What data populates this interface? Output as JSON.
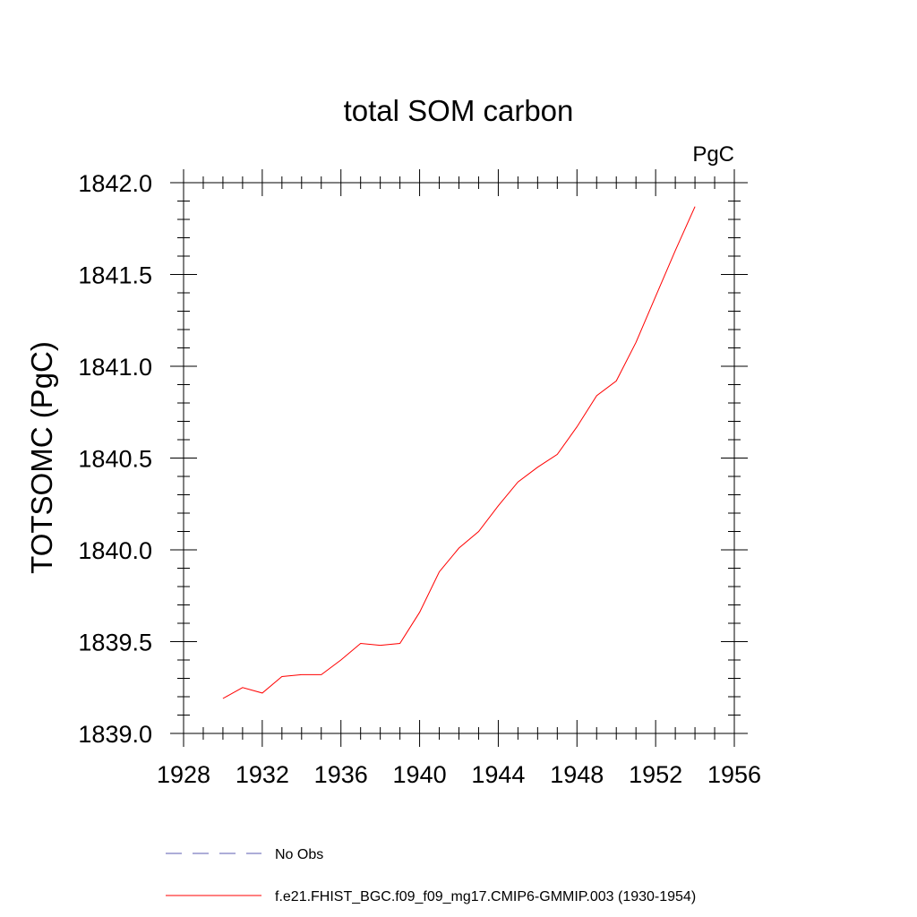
{
  "chart_data": {
    "type": "line",
    "title": "total SOM carbon",
    "units_label": "PgC",
    "ylabel": "TOTSOMC  (PgC)",
    "xlabel": "",
    "xlim": [
      1928,
      1956
    ],
    "ylim": [
      1839.0,
      1842.0
    ],
    "xticks": [
      1928,
      1932,
      1936,
      1940,
      1944,
      1948,
      1952,
      1956
    ],
    "yticks": [
      1839.0,
      1839.5,
      1840.0,
      1840.5,
      1841.0,
      1841.5,
      1842.0
    ],
    "xtick_labels": [
      "1928",
      "1932",
      "1936",
      "1940",
      "1944",
      "1948",
      "1952",
      "1956"
    ],
    "ytick_labels": [
      "1839.0",
      "1839.5",
      "1840.0",
      "1840.5",
      "1841.0",
      "1841.5",
      "1842.0"
    ],
    "grid": false,
    "legend_position": "bottom",
    "series": [
      {
        "name": "No Obs",
        "color": "#5b5bb0",
        "dash": "dashed",
        "x": [],
        "y": []
      },
      {
        "name": "f.e21.FHIST_BGC.f09_f09_mg17.CMIP6-GMMIP.003 (1930-1954)",
        "color": "#ff0000",
        "dash": "solid",
        "x": [
          1930,
          1931,
          1932,
          1933,
          1934,
          1935,
          1936,
          1937,
          1938,
          1939,
          1940,
          1941,
          1942,
          1943,
          1944,
          1945,
          1946,
          1947,
          1948,
          1949,
          1950,
          1951,
          1952,
          1953,
          1954
        ],
        "y": [
          1839.19,
          1839.25,
          1839.22,
          1839.31,
          1839.32,
          1839.32,
          1839.4,
          1839.49,
          1839.48,
          1839.49,
          1839.66,
          1839.88,
          1840.01,
          1840.1,
          1840.24,
          1840.37,
          1840.45,
          1840.52,
          1840.67,
          1840.84,
          1840.92,
          1841.13,
          1841.38,
          1841.63,
          1841.87
        ]
      }
    ]
  }
}
